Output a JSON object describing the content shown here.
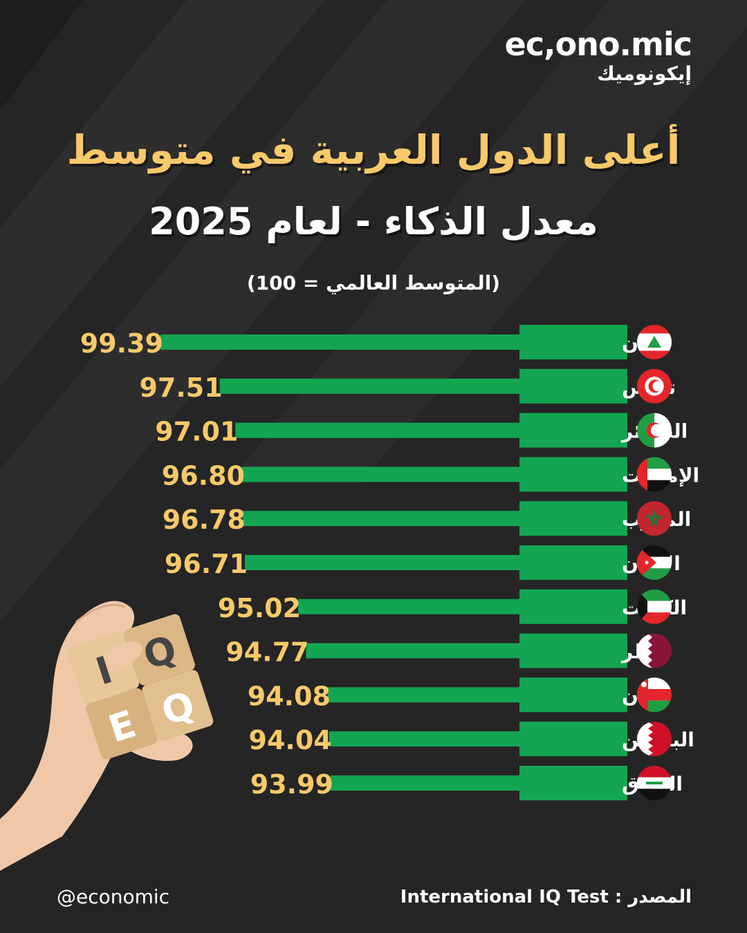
{
  "brand": {
    "logo_en": "ec,ono.mic",
    "logo_ar": "إيكونوميك",
    "handle": "@economic"
  },
  "header": {
    "title": "أعلى الدول العربية في متوسط",
    "subtitle": "معدل الذكاء - لعام 2025",
    "note": "(المتوسط العالمي = 100)"
  },
  "footer": {
    "source_label": "المصدر :",
    "source_value": "International IQ Test"
  },
  "colors": {
    "background": "#252525",
    "bar": "#13a552",
    "value_text": "#f7c96a",
    "label_text": "#ffffff"
  },
  "chart_data": {
    "type": "bar",
    "orientation": "horizontal",
    "title": "أعلى الدول العربية في متوسط معدل الذكاء - لعام 2025",
    "subtitle": "(المتوسط العالمي = 100)",
    "categories": [
      "لبنان",
      "تونس",
      "الجزائر",
      "الإمارات",
      "المغرب",
      "الأردن",
      "الكويت",
      "قطر",
      "عمان",
      "البحرين",
      "العراق"
    ],
    "values": [
      99.39,
      97.51,
      97.01,
      96.8,
      96.78,
      96.71,
      95.02,
      94.77,
      94.08,
      94.04,
      93.99
    ],
    "value_labels": [
      "99.39",
      "97.51",
      "97.01",
      "96.80",
      "96.78",
      "96.71",
      "95.02",
      "94.77",
      "94.08",
      "94.04",
      "93.99"
    ],
    "flags": [
      "lebanon-flag-icon",
      "tunisia-flag-icon",
      "algeria-flag-icon",
      "uae-flag-icon",
      "morocco-flag-icon",
      "jordan-flag-icon",
      "kuwait-flag-icon",
      "qatar-flag-icon",
      "oman-flag-icon",
      "bahrain-flag-icon",
      "iraq-flag-icon"
    ],
    "xlim": [
      90,
      100
    ],
    "grid": false,
    "legend": "none"
  }
}
